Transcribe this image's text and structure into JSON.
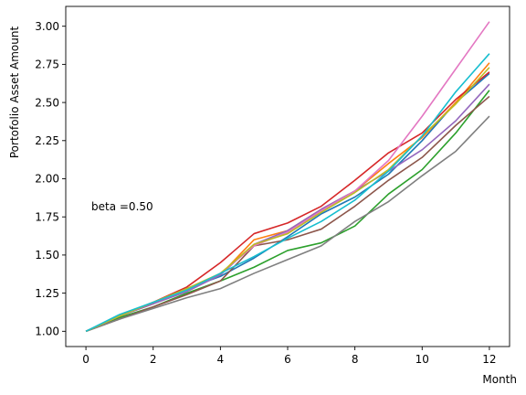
{
  "chart_data": {
    "type": "line",
    "title": "",
    "xlabel": "Month",
    "ylabel": "Portofolio Asset Amount",
    "annotation": "beta =0.50",
    "xlim": [
      -0.6,
      12.6
    ],
    "ylim": [
      0.9,
      3.13
    ],
    "x_ticks": [
      0,
      2,
      4,
      6,
      8,
      10,
      12
    ],
    "y_ticks": [
      "1.00",
      "1.25",
      "1.50",
      "1.75",
      "2.00",
      "2.25",
      "2.50",
      "2.75",
      "3.00"
    ],
    "grid": false,
    "legend": false,
    "x": [
      0,
      1,
      2,
      3,
      4,
      5,
      6,
      7,
      8,
      9,
      10,
      11,
      12
    ],
    "series": [
      {
        "color": "#1f77b4",
        "values": [
          1.0,
          1.1,
          1.18,
          1.28,
          1.36,
          1.48,
          1.62,
          1.77,
          1.88,
          2.03,
          2.25,
          2.5,
          2.69
        ]
      },
      {
        "color": "#ff7f0e",
        "values": [
          1.0,
          1.1,
          1.18,
          1.27,
          1.37,
          1.6,
          1.66,
          1.8,
          1.92,
          2.1,
          2.27,
          2.5,
          2.76
        ]
      },
      {
        "color": "#2ca02c",
        "values": [
          1.0,
          1.09,
          1.16,
          1.25,
          1.33,
          1.42,
          1.53,
          1.58,
          1.69,
          1.9,
          2.06,
          2.3,
          2.58
        ]
      },
      {
        "color": "#d62728",
        "values": [
          1.0,
          1.1,
          1.19,
          1.29,
          1.45,
          1.64,
          1.71,
          1.82,
          1.99,
          2.17,
          2.3,
          2.52,
          2.7
        ]
      },
      {
        "color": "#9467bd",
        "values": [
          1.0,
          1.1,
          1.18,
          1.26,
          1.37,
          1.57,
          1.66,
          1.8,
          1.92,
          2.05,
          2.19,
          2.38,
          2.62
        ]
      },
      {
        "color": "#8c564b",
        "values": [
          1.0,
          1.08,
          1.16,
          1.24,
          1.33,
          1.56,
          1.6,
          1.67,
          1.82,
          1.99,
          2.14,
          2.35,
          2.54
        ]
      },
      {
        "color": "#e377c2",
        "values": [
          1.0,
          1.1,
          1.19,
          1.27,
          1.38,
          1.56,
          1.65,
          1.79,
          1.92,
          2.12,
          2.41,
          2.72,
          3.03
        ]
      },
      {
        "color": "#7f7f7f",
        "values": [
          1.0,
          1.08,
          1.15,
          1.22,
          1.28,
          1.38,
          1.47,
          1.56,
          1.72,
          1.85,
          2.02,
          2.18,
          2.41
        ]
      },
      {
        "color": "#bcbd22",
        "values": [
          1.0,
          1.1,
          1.19,
          1.28,
          1.38,
          1.57,
          1.64,
          1.78,
          1.91,
          2.06,
          2.28,
          2.49,
          2.73
        ]
      },
      {
        "color": "#17becf",
        "values": [
          1.0,
          1.11,
          1.19,
          1.27,
          1.38,
          1.49,
          1.61,
          1.72,
          1.86,
          2.05,
          2.28,
          2.57,
          2.82
        ]
      }
    ]
  }
}
